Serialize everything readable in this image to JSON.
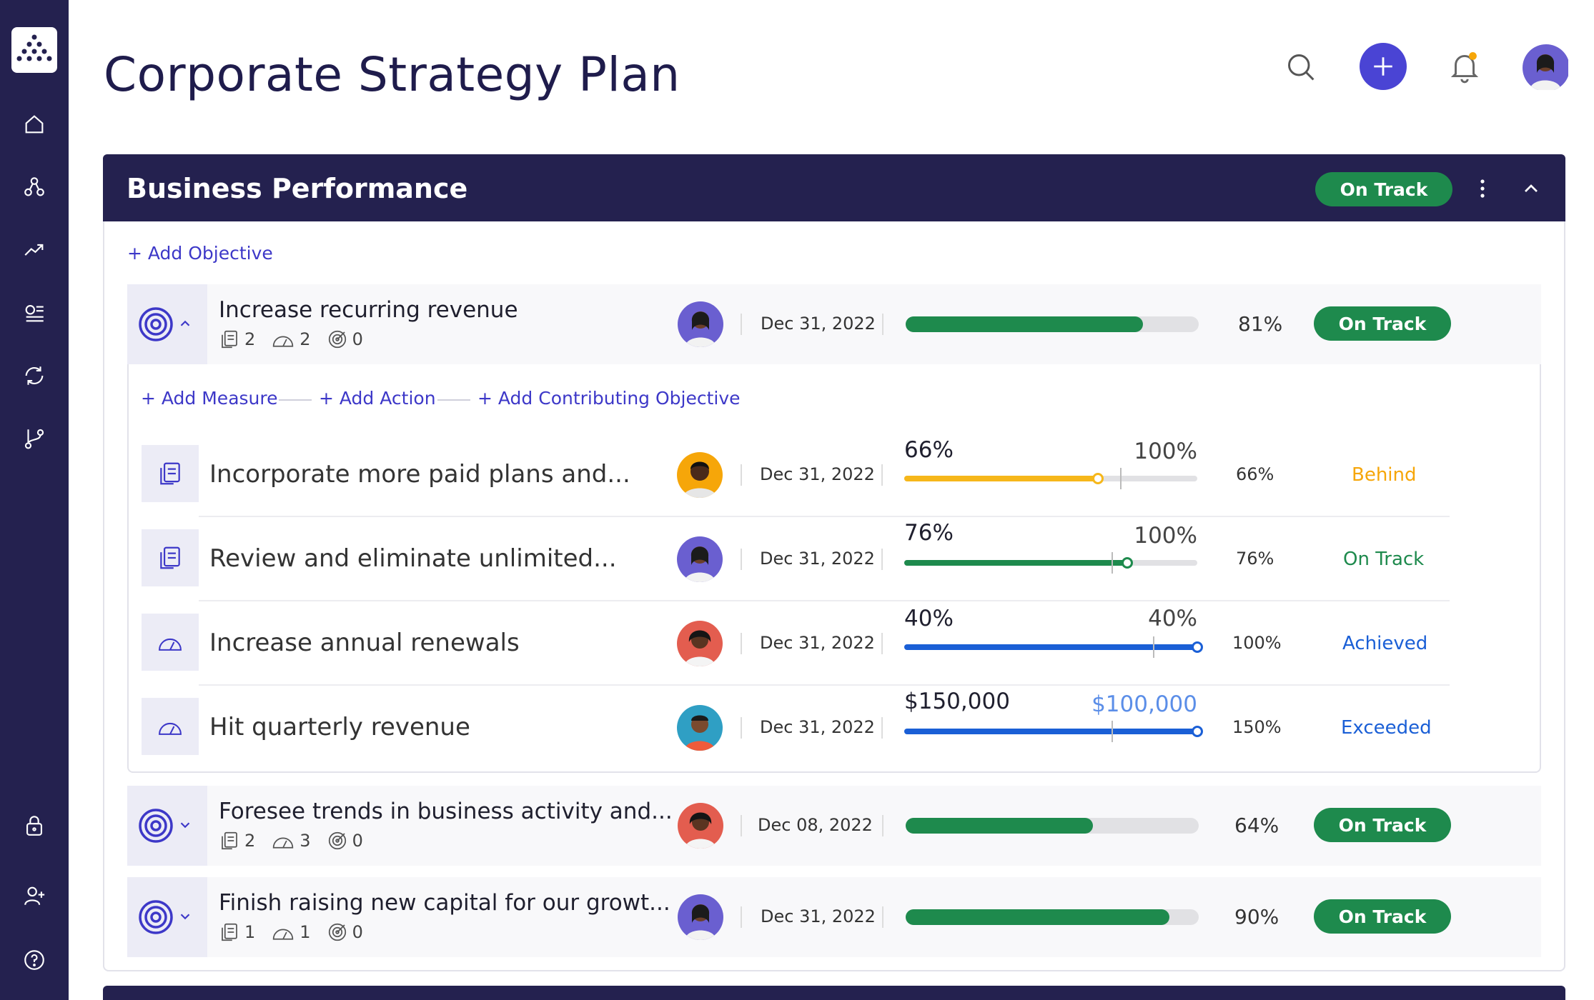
{
  "page": {
    "title": "Corporate Strategy Plan"
  },
  "icons": {
    "nav": [
      "home-icon",
      "hierarchy-icon",
      "trend-icon",
      "list-icon",
      "sync-icon",
      "branch-icon",
      "lock-icon",
      "add-user-icon",
      "help-icon"
    ],
    "top": [
      "search-icon",
      "add-icon",
      "bell-icon",
      "avatar"
    ]
  },
  "colors": {
    "navy": "#24214f",
    "green": "#1e8a4d",
    "amber": "#f6a609",
    "blue": "#1a5fd6",
    "purple": "#3d38c8"
  },
  "section": {
    "title": "Business Performance",
    "status": "On Track",
    "add_objective": "+ Add Objective"
  },
  "objectives": [
    {
      "title": "Increase recurring revenue",
      "measures": "2",
      "actions": "2",
      "contributing": "0",
      "date": "Dec 31, 2022",
      "progress": 81,
      "percent": "81%",
      "status": "On Track"
    },
    {
      "title": "Foresee trends in business activity and...",
      "measures": "2",
      "actions": "3",
      "contributing": "0",
      "date": "Dec 08, 2022",
      "progress": 64,
      "percent": "64%",
      "status": "On Track"
    },
    {
      "title": "Finish raising new capital for our growt...",
      "measures": "1",
      "actions": "1",
      "contributing": "0",
      "date": "Dec 31, 2022",
      "progress": 90,
      "percent": "90%",
      "status": "On Track"
    }
  ],
  "expanded": {
    "add_measure": "+ Add Measure",
    "add_action": "+ Add Action",
    "add_contributing": "+ Add Contributing Objective",
    "measures": [
      {
        "title": "Incorporate more paid plans and...",
        "date": "Dec 31, 2022",
        "value": "66%",
        "target": "100%",
        "progress": 66,
        "percent": "66%",
        "status": "Behind",
        "status_color": "#f6a609",
        "bar_color": "#f6b71a"
      },
      {
        "title": "Review and eliminate unlimited...",
        "date": "Dec 31, 2022",
        "value": "76%",
        "target": "100%",
        "progress": 76,
        "percent": "76%",
        "status": "On Track",
        "status_color": "#1e8a4d",
        "bar_color": "#1e8a4d"
      },
      {
        "title": "Increase annual renewals",
        "date": "Dec 31, 2022",
        "value": "40%",
        "target": "40%",
        "progress": 100,
        "percent": "100%",
        "status": "Achieved",
        "status_color": "#1a5fd6",
        "bar_color": "#1a5fd6"
      },
      {
        "title": "Hit quarterly revenue",
        "date": "Dec 31, 2022",
        "value": "$150,000",
        "target": "$100,000",
        "progress": 100,
        "percent": "150%",
        "status": "Exceeded",
        "status_color": "#1a5fd6",
        "bar_color": "#1a5fd6"
      }
    ]
  }
}
